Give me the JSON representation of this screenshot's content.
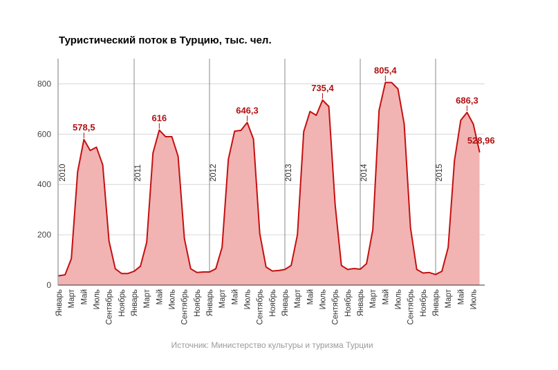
{
  "chart_data": {
    "type": "area",
    "title": "Туристический поток в Турцию, тыс. чел.",
    "source": "Источник: Министерство культуры и туризма Турции",
    "ylim": [
      0,
      900
    ],
    "yticks": [
      0,
      200,
      400,
      600,
      800
    ],
    "grid": true,
    "colors": {
      "line": "#c40f0f",
      "fill": "#f2b3b3",
      "label": "#b01010",
      "grid": "#d6d6d6",
      "year_line": "#8a8a8a"
    },
    "years": [
      "2010",
      "2011",
      "2012",
      "2013",
      "2014",
      "2015"
    ],
    "x_tick_labels": [
      "Январь",
      "Март",
      "Май",
      "Июль",
      "Сентябрь",
      "Ноябрь"
    ],
    "series": [
      {
        "values": [
          37,
          41,
          105,
          450,
          578.5,
          535,
          548,
          478,
          175,
          65,
          46,
          46,
          55,
          75,
          170,
          525,
          616,
          590,
          590,
          512,
          185,
          65,
          50,
          52,
          52,
          65,
          150,
          500,
          612,
          615,
          646.3,
          580,
          205,
          72,
          56,
          58,
          62,
          78,
          200,
          610,
          690,
          675,
          735.4,
          710,
          320,
          78,
          62,
          66,
          63,
          85,
          220,
          695,
          805.4,
          805,
          780,
          640,
          228,
          62,
          48,
          50,
          42,
          55,
          150,
          495,
          655,
          686.3,
          640,
          528.96
        ]
      }
    ],
    "annotations": [
      {
        "index": 4,
        "label": "578,5"
      },
      {
        "index": 16,
        "label": "616"
      },
      {
        "index": 30,
        "label": "646,3"
      },
      {
        "index": 42,
        "label": "735,4"
      },
      {
        "index": 52,
        "label": "805,4"
      },
      {
        "index": 65,
        "label": "686,3"
      },
      {
        "index": 67,
        "label": "528,96"
      }
    ]
  }
}
